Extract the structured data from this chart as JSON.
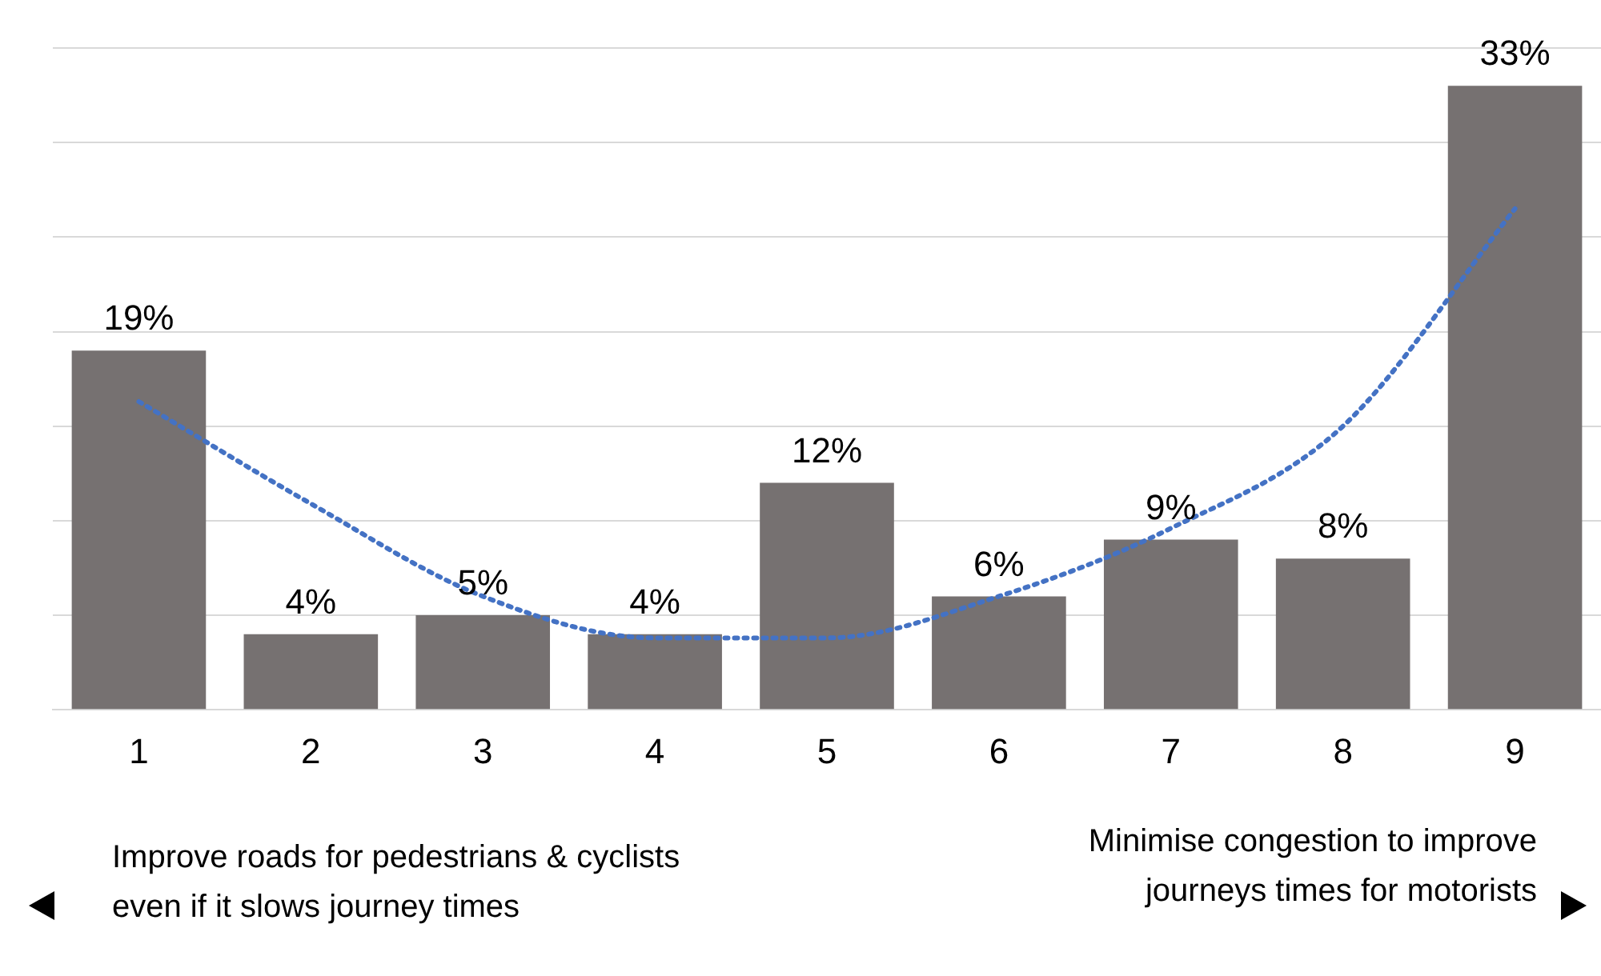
{
  "chart_data": {
    "type": "bar",
    "categories": [
      "1",
      "2",
      "3",
      "4",
      "5",
      "6",
      "7",
      "8",
      "9"
    ],
    "series": [
      {
        "color": "#767171",
        "values": [
          19,
          4,
          5,
          4,
          12,
          6,
          9,
          8,
          33
        ],
        "value_labels": [
          "19%",
          "4%",
          "5%",
          "4%",
          "12%",
          "6%",
          "9%",
          "8%",
          "33%"
        ]
      },
      {
        "type": "line",
        "color": "#4472c4",
        "line_style": "dotted",
        "marker": "none",
        "values": [
          16.3,
          10.9,
          6,
          3.8,
          3.8,
          6,
          9.6,
          15,
          26.5
        ]
      }
    ],
    "grid": "y",
    "tick_labels": "x",
    "annotations": [
      "Improve roads for pedestrians & cyclists even if it slows journey times",
      "Minimise congestion to improve journeys times for motorists"
    ]
  }
}
